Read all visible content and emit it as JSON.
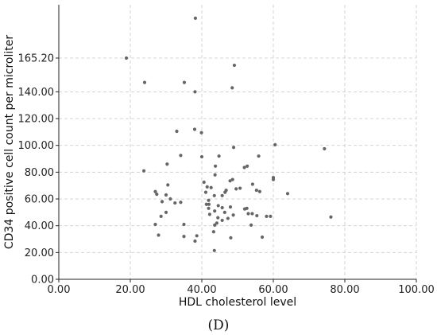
{
  "chart_data": {
    "type": "scatter",
    "xlabel": "HDL cholesterol level",
    "ylabel": "CD34 positive cell count per microliter",
    "panel_label": "(D)",
    "xlim": [
      0,
      100
    ],
    "ylim": [
      0,
      205
    ],
    "x_ticks": [
      0,
      20,
      40,
      60,
      80,
      100
    ],
    "x_tick_labels": [
      "0.00",
      "20.00",
      "40.00",
      "60.00",
      "80.00",
      "100.00"
    ],
    "y_ticks": [
      0,
      20,
      40,
      60,
      80,
      100,
      120,
      140,
      165.2
    ],
    "y_tick_labels": [
      "0.00",
      "20.00",
      "40.00",
      "60.00",
      "80.00",
      "100.00",
      "120.00",
      "140.00",
      "165.20"
    ],
    "grid": true,
    "point_color": "#666666",
    "points": [
      [
        38.2,
        195.0
      ],
      [
        18.9,
        165.2
      ],
      [
        49.1,
        159.8
      ],
      [
        24.0,
        147.0
      ],
      [
        35.1,
        147.0
      ],
      [
        48.5,
        143.0
      ],
      [
        38.1,
        140.0
      ],
      [
        33.0,
        110.5
      ],
      [
        38.0,
        112.0
      ],
      [
        39.9,
        109.5
      ],
      [
        60.5,
        100.5
      ],
      [
        48.9,
        98.5
      ],
      [
        74.3,
        97.5
      ],
      [
        34.1,
        92.5
      ],
      [
        40.0,
        91.5
      ],
      [
        44.8,
        92.0
      ],
      [
        55.9,
        92.0
      ],
      [
        30.3,
        86.0
      ],
      [
        43.8,
        84.5
      ],
      [
        51.9,
        83.5
      ],
      [
        52.7,
        84.5
      ],
      [
        23.8,
        81.0
      ],
      [
        43.7,
        78.0
      ],
      [
        60.0,
        76.0
      ],
      [
        60.0,
        74.5
      ],
      [
        40.6,
        72.5
      ],
      [
        47.9,
        73.5
      ],
      [
        48.6,
        74.5
      ],
      [
        54.2,
        71.0
      ],
      [
        30.5,
        70.5
      ],
      [
        41.5,
        69.0
      ],
      [
        42.6,
        68.5
      ],
      [
        49.6,
        67.5
      ],
      [
        50.7,
        68.0
      ],
      [
        55.3,
        66.5
      ],
      [
        56.2,
        65.5
      ],
      [
        27.4,
        63.5
      ],
      [
        28.9,
        58.0
      ],
      [
        30.0,
        63.0
      ],
      [
        41.1,
        65.0
      ],
      [
        41.9,
        59.0
      ],
      [
        43.5,
        62.5
      ],
      [
        45.7,
        62.5
      ],
      [
        46.5,
        65.0
      ],
      [
        46.8,
        66.5
      ],
      [
        64.0,
        64.0
      ],
      [
        27.0,
        65.5
      ],
      [
        31.2,
        60.0
      ],
      [
        32.5,
        57.0
      ],
      [
        34.1,
        57.5
      ],
      [
        41.3,
        56.0
      ],
      [
        42.0,
        56.0
      ],
      [
        44.6,
        55.0
      ],
      [
        45.7,
        53.5
      ],
      [
        48.0,
        54.0
      ],
      [
        52.0,
        52.5
      ],
      [
        28.6,
        47.0
      ],
      [
        30.0,
        50.0
      ],
      [
        35.0,
        41.0
      ],
      [
        41.9,
        53.0
      ],
      [
        42.2,
        48.5
      ],
      [
        43.6,
        51.0
      ],
      [
        44.5,
        46.0
      ],
      [
        46.4,
        50.0
      ],
      [
        47.3,
        45.5
      ],
      [
        48.8,
        48.0
      ],
      [
        52.6,
        53.0
      ],
      [
        53.0,
        49.0
      ],
      [
        54.1,
        49.0
      ],
      [
        55.4,
        47.5
      ],
      [
        58.1,
        47.0
      ],
      [
        59.2,
        47.0
      ],
      [
        76.1,
        46.5
      ],
      [
        27.0,
        41.0
      ],
      [
        43.6,
        40.5
      ],
      [
        44.2,
        42.0
      ],
      [
        45.7,
        44.0
      ],
      [
        53.8,
        40.5
      ],
      [
        27.9,
        33.0
      ],
      [
        35.0,
        32.0
      ],
      [
        38.6,
        32.5
      ],
      [
        43.3,
        35.5
      ],
      [
        48.1,
        31.0
      ],
      [
        56.9,
        31.5
      ],
      [
        38.1,
        28.5
      ],
      [
        43.5,
        21.5
      ]
    ]
  }
}
